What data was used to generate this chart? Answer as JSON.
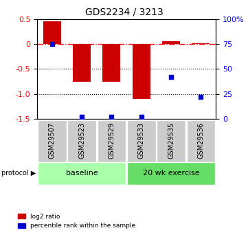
{
  "title": "GDS2234 / 3213",
  "samples": [
    "GSM29507",
    "GSM29523",
    "GSM29529",
    "GSM29533",
    "GSM29535",
    "GSM29536"
  ],
  "log2_ratio": [
    0.45,
    -0.75,
    -0.75,
    -1.1,
    0.05,
    0.02
  ],
  "percentile_rank": [
    75,
    2,
    2,
    2,
    42,
    22
  ],
  "ylim_left": [
    -1.5,
    0.5
  ],
  "ylim_right": [
    0,
    100
  ],
  "bar_color": "#cc0000",
  "dot_color": "#0000cc",
  "baseline_color": "#aaffaa",
  "exercise_color": "#66dd66",
  "protocol_groups": [
    {
      "label": "baseline",
      "start": 0,
      "end": 2
    },
    {
      "label": "20 wk exercise",
      "start": 3,
      "end": 5
    }
  ],
  "yticks_left": [
    0.5,
    0,
    -0.5,
    -1.0,
    -1.5
  ],
  "yticks_right": [
    100,
    75,
    50,
    25,
    0
  ],
  "grid_values": [
    -0.5,
    -1.0
  ],
  "zero_line": 0.0,
  "bar_width": 0.6
}
